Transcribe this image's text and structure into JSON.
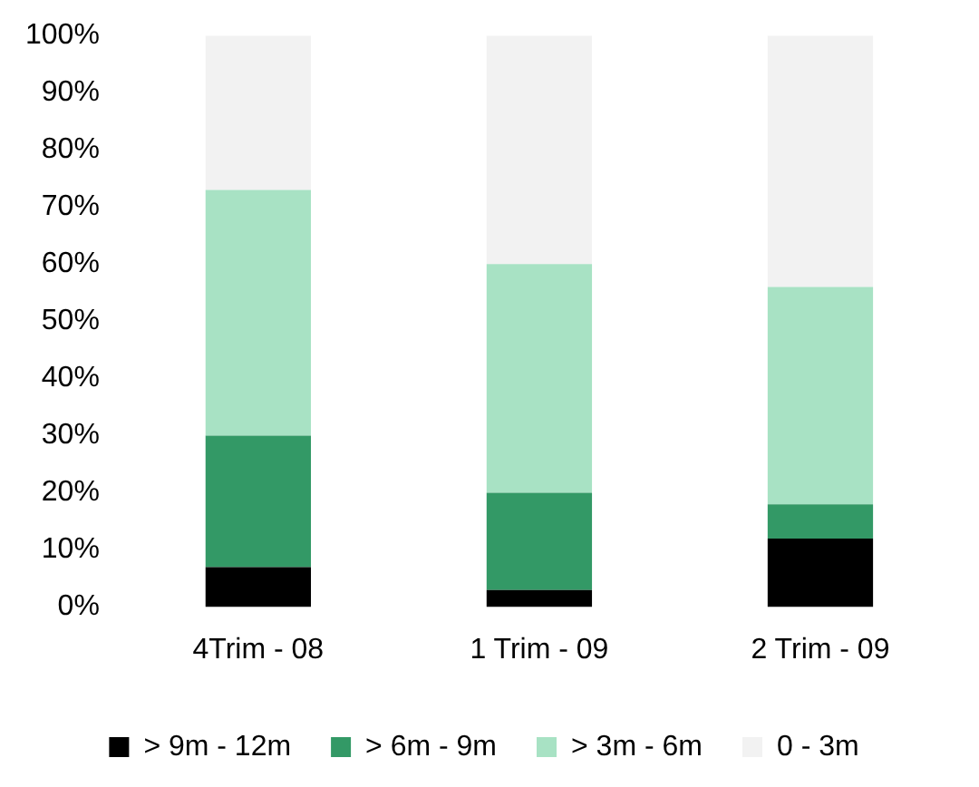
{
  "chart_data": {
    "type": "bar",
    "stacked": true,
    "categories": [
      "4Trim - 08",
      "1 Trim - 09",
      "2 Trim - 09"
    ],
    "series": [
      {
        "name": "> 9m - 12m",
        "color": "#000000",
        "values": [
          7,
          3,
          12
        ]
      },
      {
        "name": "> 6m - 9m",
        "color": "#339966",
        "values": [
          23,
          17,
          6
        ]
      },
      {
        "name": "> 3m - 6m",
        "color": "#a8e2c4",
        "values": [
          43,
          40,
          38
        ]
      },
      {
        "name": "0 - 3m",
        "color": "#f2f2f2",
        "values": [
          27,
          40,
          44
        ]
      }
    ],
    "ylim": [
      0,
      100
    ],
    "yticks": [
      {
        "value": 0,
        "label": "0%"
      },
      {
        "value": 10,
        "label": "10%"
      },
      {
        "value": 20,
        "label": "20%"
      },
      {
        "value": 30,
        "label": "30%"
      },
      {
        "value": 40,
        "label": "40%"
      },
      {
        "value": 50,
        "label": "50%"
      },
      {
        "value": 60,
        "label": "60%"
      },
      {
        "value": 70,
        "label": "70%"
      },
      {
        "value": 80,
        "label": "80%"
      },
      {
        "value": 90,
        "label": "90%"
      },
      {
        "value": 100,
        "label": "100%"
      }
    ],
    "grid": false,
    "legend": "bottom"
  }
}
